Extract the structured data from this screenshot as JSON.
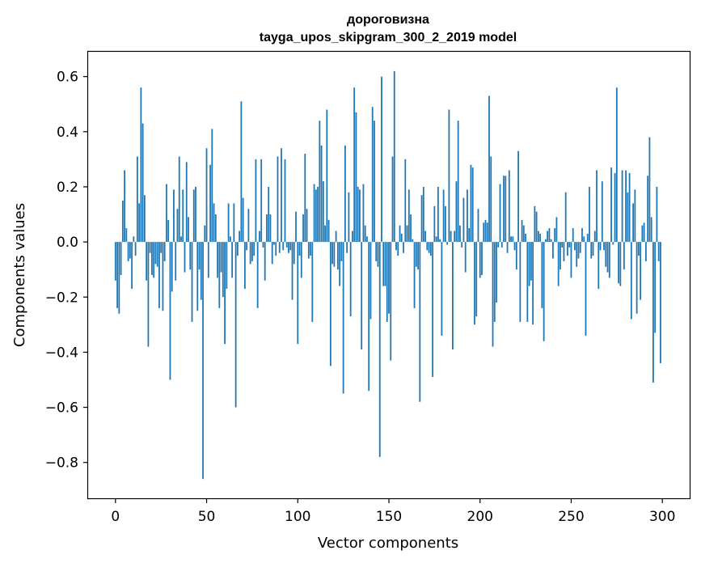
{
  "chart_data": {
    "type": "bar",
    "title_line1": "дороговизна",
    "title_line2": "tayga_upos_skipgram_300_2_2019 model",
    "xlabel": "Vector components",
    "ylabel": "Components values",
    "xlim": [
      -15,
      315
    ],
    "ylim": [
      -0.93,
      0.69
    ],
    "xticks": [
      0,
      50,
      100,
      150,
      200,
      250,
      300
    ],
    "xtick_labels": [
      "0",
      "50",
      "100",
      "150",
      "200",
      "250",
      "300"
    ],
    "yticks": [
      0.6,
      0.4,
      0.2,
      0.0,
      -0.2,
      -0.4,
      -0.6,
      -0.8
    ],
    "ytick_labels": [
      "0.6",
      "0.4",
      "0.2",
      "0.0",
      "−0.2",
      "−0.4",
      "−0.6",
      "−0.8"
    ],
    "bar_color": "#1f77b4",
    "values": [
      -0.14,
      -0.24,
      -0.26,
      -0.12,
      0.15,
      0.26,
      0.05,
      -0.07,
      -0.06,
      -0.17,
      0.02,
      -0.05,
      0.31,
      0.14,
      0.56,
      0.43,
      0.17,
      -0.14,
      -0.38,
      -0.04,
      -0.12,
      -0.13,
      -0.08,
      -0.09,
      -0.24,
      -0.04,
      -0.25,
      -0.07,
      0.21,
      0.08,
      -0.5,
      -0.18,
      0.19,
      -0.14,
      0.12,
      0.31,
      0.02,
      0.19,
      -0.11,
      0.29,
      0.09,
      -0.1,
      -0.29,
      0.19,
      0.2,
      -0.25,
      -0.1,
      -0.21,
      -0.86,
      0.06,
      0.34,
      -0.13,
      0.28,
      0.41,
      0.14,
      0.1,
      -0.13,
      -0.24,
      -0.11,
      -0.2,
      -0.37,
      -0.17,
      0.14,
      0.02,
      -0.13,
      0.14,
      -0.6,
      -0.05,
      0.04,
      0.51,
      0.16,
      -0.17,
      -0.03,
      0.12,
      -0.08,
      -0.07,
      -0.05,
      0.3,
      -0.24,
      0.04,
      0.3,
      -0.02,
      -0.14,
      0.1,
      0.2,
      0.1,
      -0.08,
      -0.01,
      -0.05,
      0.31,
      -0.04,
      0.34,
      -0.03,
      0.3,
      -0.02,
      -0.04,
      -0.03,
      -0.21,
      -0.08,
      0.11,
      -0.37,
      -0.05,
      -0.13,
      0.1,
      0.32,
      0.12,
      -0.06,
      -0.05,
      -0.29,
      0.21,
      0.19,
      0.2,
      0.44,
      0.35,
      0.22,
      0.06,
      0.48,
      0.08,
      -0.45,
      -0.08,
      -0.09,
      0.04,
      -0.1,
      -0.16,
      -0.07,
      -0.55,
      0.35,
      -0.04,
      0.18,
      -0.27,
      0.04,
      0.56,
      0.47,
      0.2,
      0.19,
      -0.39,
      0.21,
      0.06,
      0.02,
      -0.54,
      -0.28,
      0.49,
      0.44,
      -0.07,
      -0.09,
      -0.78,
      0.6,
      -0.16,
      -0.16,
      -0.29,
      -0.26,
      -0.43,
      0.31,
      0.62,
      -0.03,
      -0.05,
      0.06,
      0.03,
      -0.04,
      0.3,
      0.06,
      0.19,
      0.1,
      0.01,
      -0.24,
      -0.09,
      -0.1,
      -0.58,
      0.17,
      0.2,
      0.04,
      -0.03,
      -0.04,
      -0.05,
      -0.49,
      0.13,
      0.02,
      0.2,
      0.01,
      -0.34,
      0.19,
      0.13,
      -0.01,
      0.48,
      0.04,
      -0.39,
      0.04,
      0.22,
      0.44,
      0.06,
      -0.02,
      0.16,
      -0.11,
      0.19,
      0.05,
      0.28,
      0.27,
      -0.3,
      -0.27,
      0.12,
      -0.13,
      -0.12,
      0.07,
      0.08,
      0.07,
      0.53,
      0.31,
      -0.38,
      -0.29,
      -0.22,
      -0.02,
      0.21,
      -0.02,
      0.24,
      0.24,
      -0.04,
      0.26,
      0.02,
      0.02,
      -0.03,
      -0.1,
      0.33,
      -0.29,
      0.08,
      0.06,
      0.03,
      -0.29,
      -0.16,
      -0.14,
      -0.3,
      0.13,
      0.11,
      0.04,
      0.03,
      -0.24,
      -0.36,
      0.01,
      0.04,
      0.05,
      0.01,
      -0.06,
      0.05,
      0.09,
      -0.16,
      -0.1,
      -0.02,
      -0.07,
      0.18,
      -0.05,
      -0.02,
      -0.13,
      0.05,
      -0.03,
      -0.09,
      -0.06,
      -0.04,
      0.05,
      0.02,
      -0.34,
      0.03,
      0.2,
      -0.06,
      -0.05,
      0.04,
      0.26,
      -0.17,
      -0.03,
      0.22,
      -0.03,
      -0.09,
      -0.11,
      -0.13,
      0.27,
      -0.01,
      0.25,
      0.56,
      -0.15,
      -0.16,
      0.26,
      -0.1,
      0.26,
      0.18,
      0.25,
      -0.28,
      0.14,
      0.19,
      -0.26,
      -0.05,
      -0.21,
      0.06,
      0.07,
      -0.07,
      0.24,
      0.38,
      0.09,
      -0.51,
      -0.33,
      0.2,
      -0.07,
      -0.44
    ]
  }
}
